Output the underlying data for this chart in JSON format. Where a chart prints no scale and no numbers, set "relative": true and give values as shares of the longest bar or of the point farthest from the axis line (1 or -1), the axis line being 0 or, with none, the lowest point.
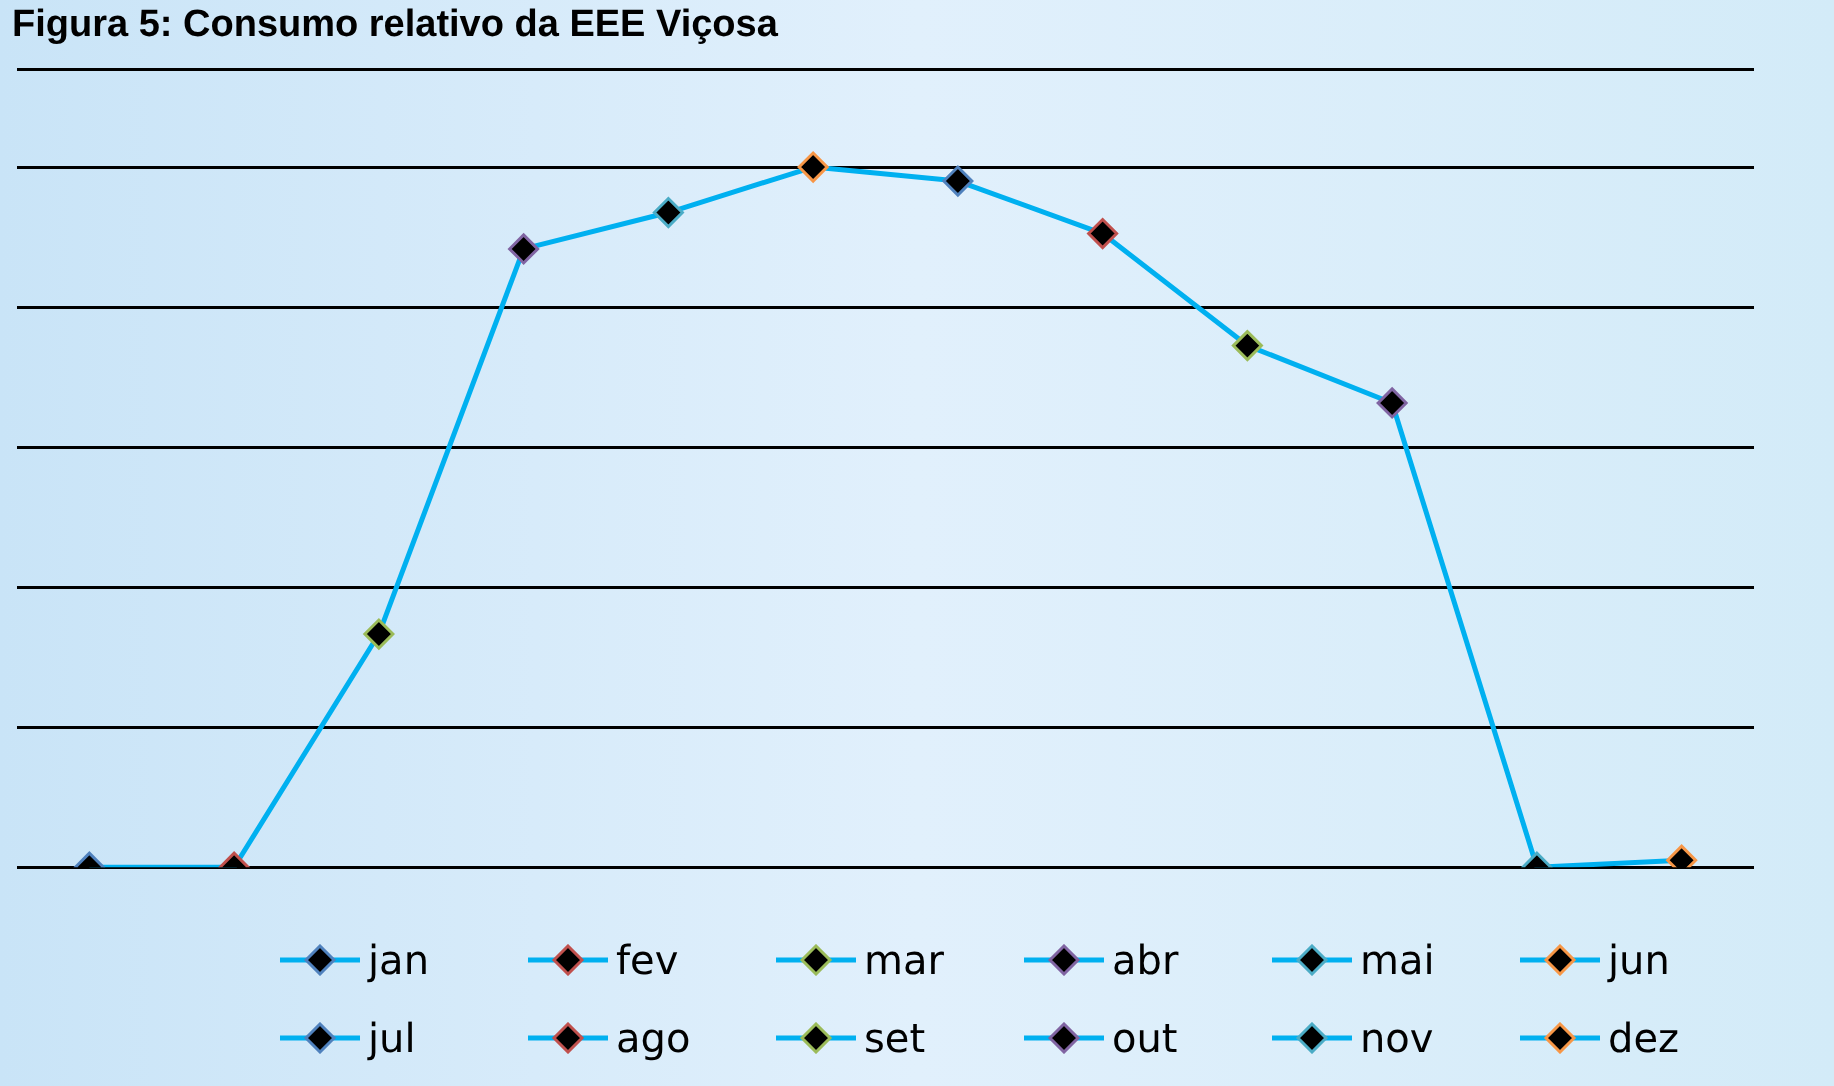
{
  "chart_data": {
    "type": "line",
    "title": "Figura 5: Consumo relativo da EEE Viçosa",
    "relative": true,
    "categories": [
      null,
      null,
      null,
      null,
      null,
      null,
      null,
      null,
      null,
      null,
      null,
      null
    ],
    "series": [
      {
        "color": "#00b0f0",
        "colors": [
          "#4f81bd",
          "#c0504d",
          "#9bbb59",
          "#8064a2",
          "#4bacc6",
          "#f79646",
          "#4f81bd",
          "#c0504d",
          "#9bbb59",
          "#8064a2",
          "#4bacc6",
          "#f79646"
        ],
        "values": [
          0,
          0,
          0.333,
          0.883,
          0.935,
          1,
          0.98,
          0.905,
          0.745,
          0.663,
          0,
          0.01
        ]
      }
    ],
    "annotations": [
      "jan",
      "fev",
      "mar",
      "abr",
      "mai",
      "jun",
      "jul",
      "ago",
      "set",
      "out",
      "nov",
      "dez"
    ],
    "grid": "y",
    "marker": "diamond"
  }
}
